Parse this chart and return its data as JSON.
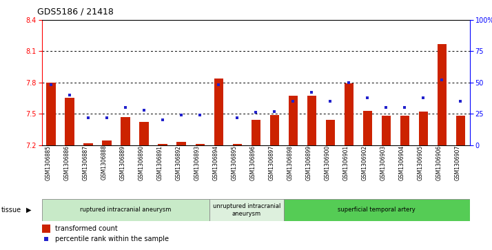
{
  "title": "GDS5186 / 21418",
  "samples": [
    "GSM1306885",
    "GSM1306886",
    "GSM1306887",
    "GSM1306888",
    "GSM1306889",
    "GSM1306890",
    "GSM1306891",
    "GSM1306892",
    "GSM1306893",
    "GSM1306894",
    "GSM1306895",
    "GSM1306896",
    "GSM1306897",
    "GSM1306898",
    "GSM1306899",
    "GSM1306900",
    "GSM1306901",
    "GSM1306902",
    "GSM1306903",
    "GSM1306904",
    "GSM1306905",
    "GSM1306906",
    "GSM1306907"
  ],
  "bar_values": [
    7.8,
    7.65,
    7.22,
    7.24,
    7.47,
    7.42,
    7.21,
    7.23,
    7.21,
    7.84,
    7.21,
    7.44,
    7.49,
    7.67,
    7.67,
    7.44,
    7.79,
    7.53,
    7.48,
    7.48,
    7.52,
    8.17,
    7.48
  ],
  "percentile_values": [
    48,
    40,
    22,
    22,
    30,
    28,
    20,
    24,
    24,
    48,
    22,
    26,
    27,
    35,
    42,
    35,
    50,
    38,
    30,
    30,
    38,
    52,
    35
  ],
  "bar_color": "#cc2200",
  "dot_color": "#2222cc",
  "bar_bottom": 7.2,
  "ylim_left": [
    7.2,
    8.4
  ],
  "ylim_right": [
    0,
    100
  ],
  "yticks_left": [
    7.2,
    7.5,
    7.8,
    8.1,
    8.4
  ],
  "yticks_right": [
    0,
    25,
    50,
    75,
    100
  ],
  "grid_values": [
    7.5,
    7.8,
    8.1
  ],
  "groups": [
    {
      "label": "ruptured intracranial aneurysm",
      "start": 0,
      "end": 8,
      "color": "#c8eac8"
    },
    {
      "label": "unruptured intracranial\naneurysm",
      "start": 9,
      "end": 12,
      "color": "#ddf0dd"
    },
    {
      "label": "superficial temporal artery",
      "start": 13,
      "end": 22,
      "color": "#55cc55"
    }
  ],
  "tissue_label": "tissue",
  "legend_bar_label": "transformed count",
  "legend_dot_label": "percentile rank within the sample",
  "background_color": "#ffffff",
  "plot_bg_color": "#ffffff"
}
